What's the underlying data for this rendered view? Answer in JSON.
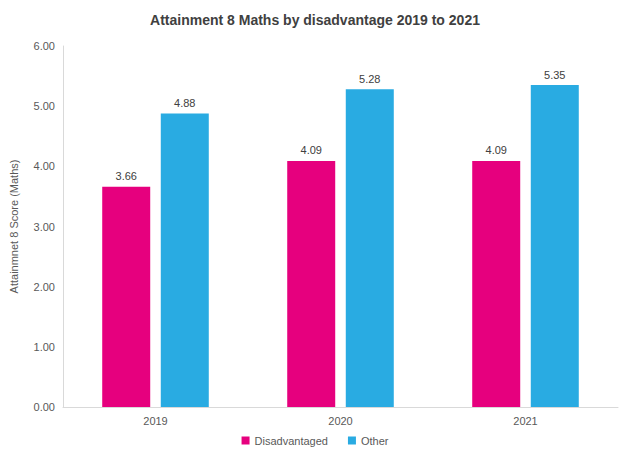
{
  "chart_data": {
    "type": "bar",
    "title": "Attainment 8 Maths by disadvantage 2019 to 2021",
    "y_label": "Attainmnet 8 Score (Maths)",
    "categories": [
      "2019",
      "2020",
      "2021"
    ],
    "series": [
      {
        "name": "Disadvantaged",
        "color": "#e6007e",
        "values": [
          3.66,
          4.09,
          4.09
        ]
      },
      {
        "name": "Other",
        "color": "#29abe2",
        "values": [
          4.88,
          5.28,
          5.35
        ]
      }
    ],
    "ylim": [
      0,
      6
    ],
    "yticks": [
      {
        "value": 0,
        "label": "0.00"
      },
      {
        "value": 1,
        "label": "1.00"
      },
      {
        "value": 2,
        "label": "2.00"
      },
      {
        "value": 3,
        "label": "3.00"
      },
      {
        "value": 4,
        "label": "4.00"
      },
      {
        "value": 5,
        "label": "5.00"
      },
      {
        "value": 6,
        "label": "6.00"
      }
    ],
    "grid": false,
    "legend": "bottom",
    "data_labels": true
  }
}
